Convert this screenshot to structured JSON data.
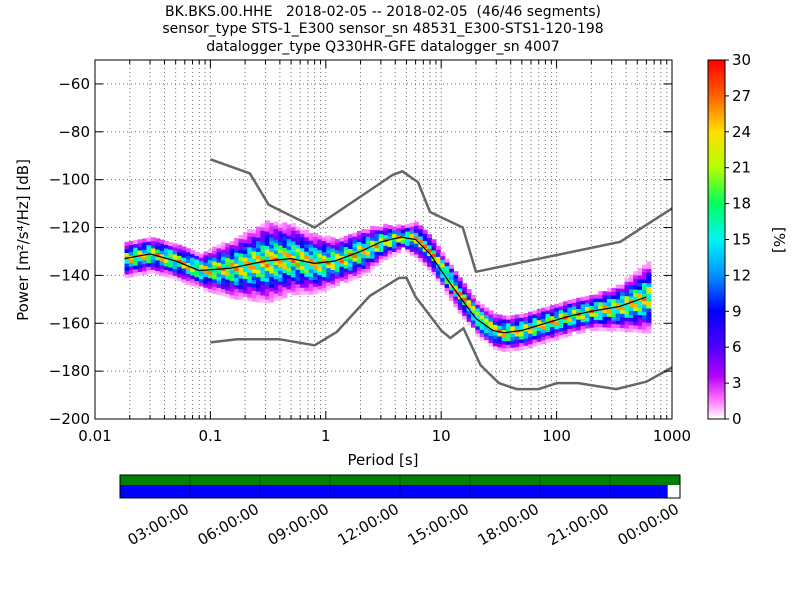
{
  "chart_data": {
    "type": "heatmap",
    "title_lines": [
      "BK.BKS.00.HHE   2018-02-05 -- 2018-02-05  (46/46 segments)",
      "sensor_type STS-1_E300 sensor_sn 48531_E300-STS1-120-198",
      "datalogger_type Q330HR-GFE datalogger_sn 4007"
    ],
    "xlabel": "Period [s]",
    "ylabel": "Power [m²/s⁴/Hz] [dB]",
    "x_scale": "log",
    "xlim": [
      0.01,
      1000
    ],
    "ylim": [
      -200,
      -50
    ],
    "x_ticks": [
      {
        "v": 0.01,
        "label": "0.01"
      },
      {
        "v": 0.1,
        "label": "0.1"
      },
      {
        "v": 1,
        "label": "1"
      },
      {
        "v": 10,
        "label": "10"
      },
      {
        "v": 100,
        "label": "100"
      },
      {
        "v": 1000,
        "label": "1000"
      }
    ],
    "y_ticks": [
      {
        "v": -60,
        "label": "−60"
      },
      {
        "v": -80,
        "label": "−80"
      },
      {
        "v": -100,
        "label": "−100"
      },
      {
        "v": -120,
        "label": "−120"
      },
      {
        "v": -140,
        "label": "−140"
      },
      {
        "v": -160,
        "label": "−160"
      },
      {
        "v": -180,
        "label": "−180"
      },
      {
        "v": -200,
        "label": "−200"
      }
    ],
    "grid": "dotted",
    "colorbar": {
      "label": "[%]",
      "range": [
        0,
        30
      ],
      "ticks": [
        {
          "v": 0,
          "label": "0"
        },
        {
          "v": 3,
          "label": "3"
        },
        {
          "v": 6,
          "label": "6"
        },
        {
          "v": 9,
          "label": "9"
        },
        {
          "v": 12,
          "label": "12"
        },
        {
          "v": 15,
          "label": "15"
        },
        {
          "v": 18,
          "label": "18"
        },
        {
          "v": 21,
          "label": "21"
        },
        {
          "v": 24,
          "label": "24"
        },
        {
          "v": 27,
          "label": "27"
        },
        {
          "v": 30,
          "label": "30"
        }
      ]
    },
    "noise_models": [
      {
        "points": [
          [
            0.1,
            -91.5
          ],
          [
            0.22,
            -97.4
          ],
          [
            0.32,
            -110.5
          ],
          [
            0.8,
            -120
          ],
          [
            3.8,
            -98
          ],
          [
            4.6,
            -96.5
          ],
          [
            6.3,
            -101
          ],
          [
            8,
            -113.5
          ],
          [
            15.4,
            -120
          ],
          [
            20,
            -138.5
          ],
          [
            354.8,
            -126
          ],
          [
            1000,
            -112
          ]
        ]
      },
      {
        "points": [
          [
            0.1,
            -168
          ],
          [
            0.17,
            -166.7
          ],
          [
            0.4,
            -166.7
          ],
          [
            0.8,
            -169.2
          ],
          [
            1.24,
            -163.7
          ],
          [
            2.4,
            -148.6
          ],
          [
            4.3,
            -141.1
          ],
          [
            5,
            -141
          ],
          [
            6,
            -149
          ],
          [
            10,
            -163
          ],
          [
            12,
            -166.2
          ],
          [
            15.6,
            -162.1
          ],
          [
            21.9,
            -177.5
          ],
          [
            31.6,
            -185
          ],
          [
            45,
            -187.5
          ],
          [
            70,
            -187.5
          ],
          [
            101,
            -185
          ],
          [
            154,
            -185
          ],
          [
            328,
            -187.5
          ],
          [
            600,
            -184.4
          ],
          [
            1000,
            -178.5
          ]
        ]
      }
    ],
    "mean_curve": [
      [
        0.018,
        -133
      ],
      [
        0.03,
        -131
      ],
      [
        0.05,
        -134
      ],
      [
        0.08,
        -138
      ],
      [
        0.15,
        -137
      ],
      [
        0.3,
        -134
      ],
      [
        0.5,
        -133
      ],
      [
        0.8,
        -135
      ],
      [
        1.2,
        -134
      ],
      [
        2,
        -130
      ],
      [
        3,
        -126
      ],
      [
        4.5,
        -124
      ],
      [
        6,
        -125
      ],
      [
        8,
        -131
      ],
      [
        10,
        -138
      ],
      [
        14,
        -148
      ],
      [
        20,
        -158
      ],
      [
        28,
        -163
      ],
      [
        35,
        -164
      ],
      [
        50,
        -163
      ],
      [
        80,
        -160
      ],
      [
        130,
        -157
      ],
      [
        200,
        -155
      ],
      [
        350,
        -153
      ],
      [
        600,
        -149
      ]
    ],
    "spread_curve": [
      [
        0.018,
        3
      ],
      [
        0.03,
        3
      ],
      [
        0.05,
        3
      ],
      [
        0.08,
        3
      ],
      [
        0.15,
        5
      ],
      [
        0.3,
        7
      ],
      [
        0.5,
        6
      ],
      [
        0.8,
        5
      ],
      [
        1.2,
        4
      ],
      [
        2,
        4
      ],
      [
        3,
        3
      ],
      [
        4.5,
        2
      ],
      [
        6,
        3
      ],
      [
        8,
        3
      ],
      [
        10,
        3
      ],
      [
        14,
        3
      ],
      [
        20,
        3
      ],
      [
        28,
        3
      ],
      [
        35,
        3
      ],
      [
        50,
        3
      ],
      [
        80,
        3
      ],
      [
        130,
        3
      ],
      [
        200,
        3
      ],
      [
        350,
        4
      ],
      [
        600,
        6
      ]
    ],
    "availability": {
      "tick_labels": [
        "03:00:00",
        "06:00:00",
        "09:00:00",
        "12:00:00",
        "15:00:00",
        "18:00:00",
        "21:00:00",
        "00:00:00"
      ],
      "data_fraction": 0.978,
      "colors": {
        "top": "#008000",
        "bottom": "#0000ff"
      }
    }
  }
}
